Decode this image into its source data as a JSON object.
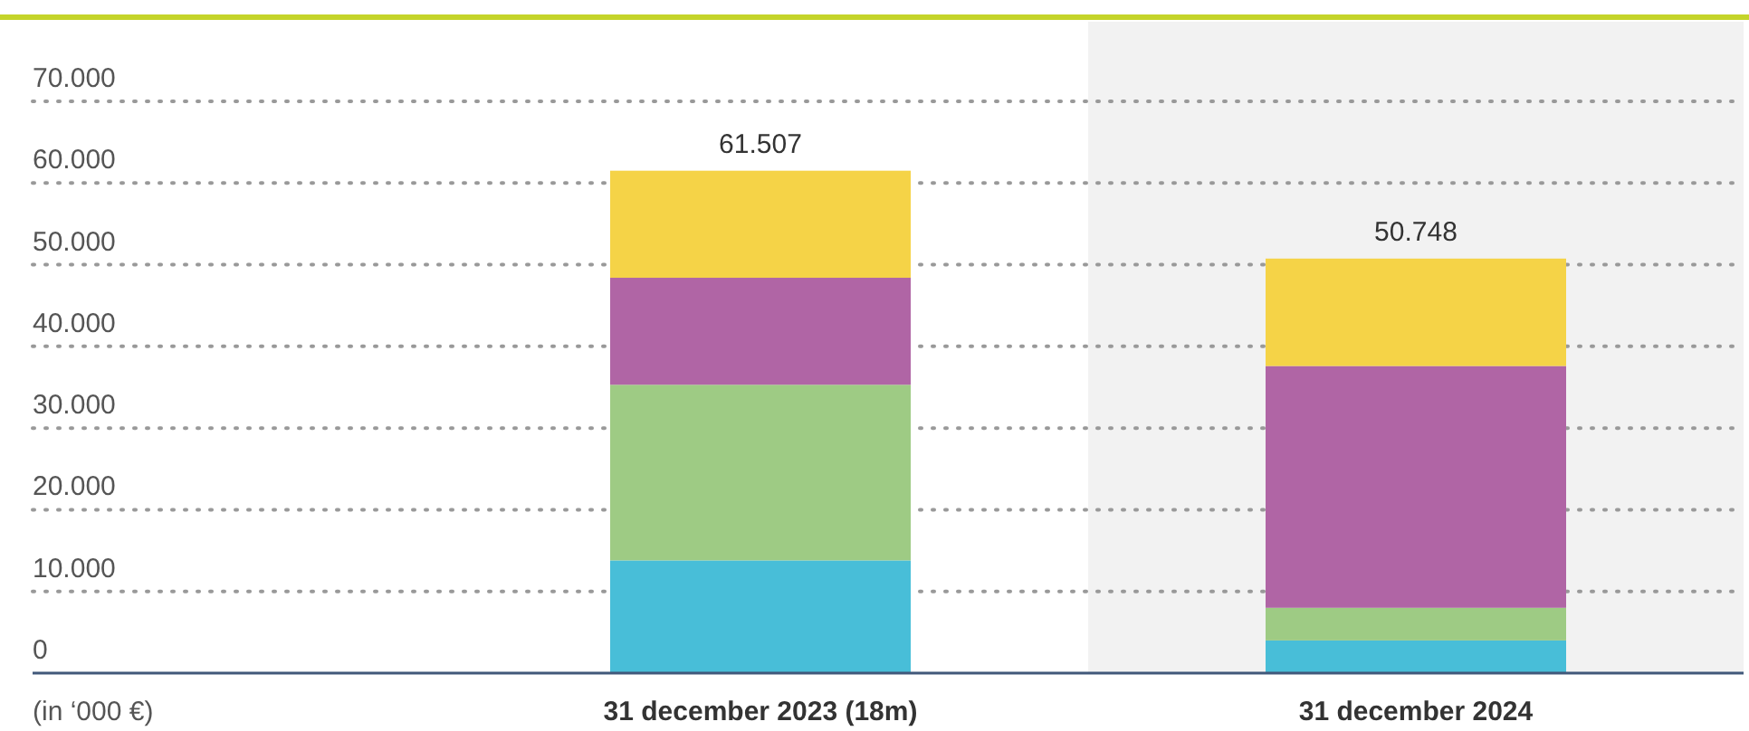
{
  "chart_data": {
    "type": "bar",
    "stacked": true,
    "categories": [
      "31 december 2023 (18m)",
      "31 december 2024"
    ],
    "series": [
      {
        "color": "#48bed8",
        "values": [
          13800,
          4000
        ]
      },
      {
        "color": "#9ecb84",
        "values": [
          21500,
          4000
        ]
      },
      {
        "color": "#b065a5",
        "values": [
          13100,
          29600
        ]
      },
      {
        "color": "#f5d347",
        "values": [
          13107,
          13148
        ]
      }
    ],
    "totals": [
      "61.507",
      "50.748"
    ],
    "ylim": [
      0,
      70000
    ],
    "yticks": [
      0,
      {
        "value": 10000,
        "label": "10.000"
      },
      {
        "value": 20000,
        "label": "20.000"
      },
      {
        "value": 30000,
        "label": "30.000"
      },
      {
        "value": 40000,
        "label": "40.000"
      },
      {
        "value": 50000,
        "label": "50.000"
      },
      {
        "value": 60000,
        "label": "60.000"
      },
      {
        "value": 70000,
        "label": "70.000"
      }
    ],
    "grid": "y",
    "annotations": [
      "(in ‘000 €)"
    ],
    "bands": [
      {
        "axis": "x",
        "from": "31 december 2024",
        "to": "31 december 2024",
        "color": "#f2f2f2"
      }
    ]
  }
}
